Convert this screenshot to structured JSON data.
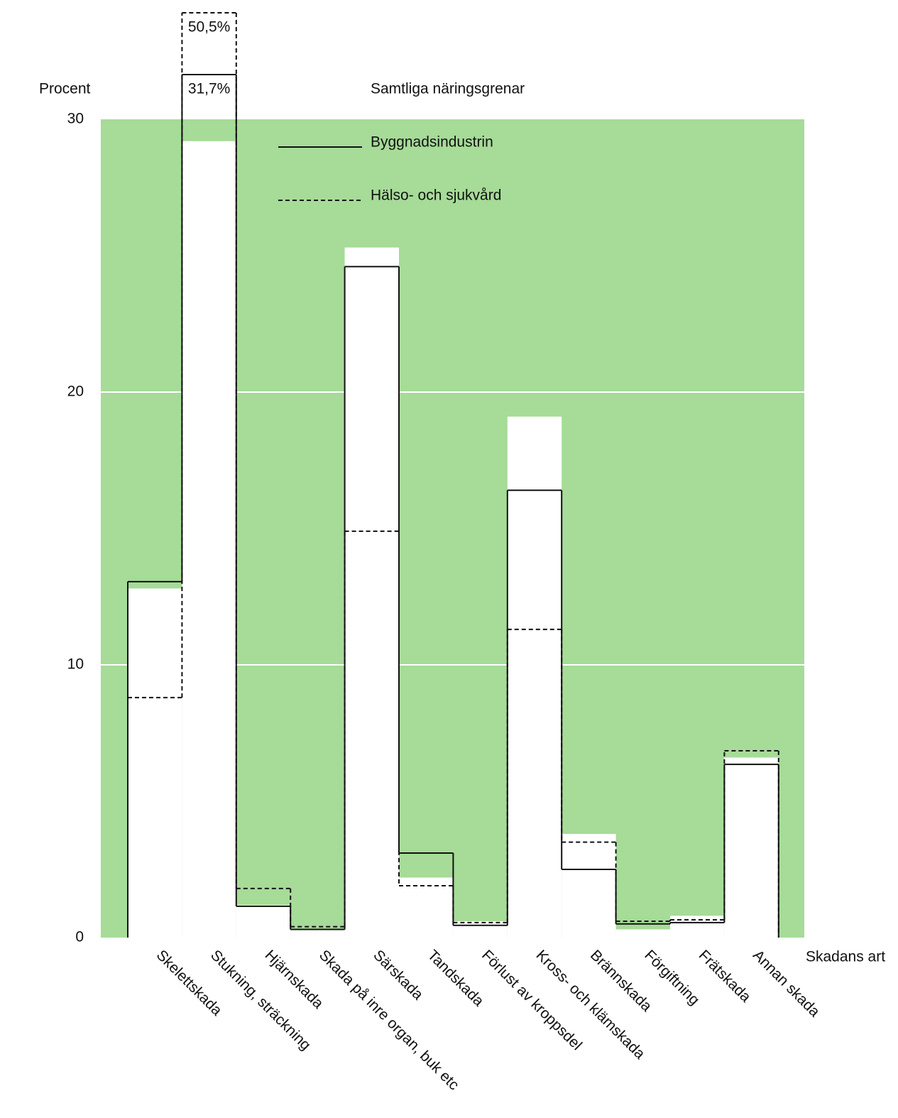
{
  "chart_data": {
    "type": "step",
    "y_label": "Procent",
    "x_label": "Skadans art",
    "categories": [
      "Skelettskada",
      "Stukning, sträckning",
      "Hjärnskada",
      "Skada på inre organ, buk etc",
      "Särskada",
      "Tandskada",
      "Förlust av kroppsdel",
      "Kross- och klämskada",
      "Brännskada",
      "Förgiftning",
      "Frätskada",
      "Annan skada"
    ],
    "series": [
      {
        "name": "Samtliga näringsgrenar",
        "color": "#ffffff",
        "style": "fill",
        "values": [
          12.8,
          29.2,
          1.2,
          0.3,
          25.3,
          2.2,
          0.6,
          19.1,
          3.8,
          0.3,
          0.8,
          6.6
        ]
      },
      {
        "name": "Byggnadsindustrin",
        "color": "#111111",
        "style": "solid",
        "values": [
          13.05,
          31.7,
          1.15,
          0.3,
          24.6,
          3.1,
          0.45,
          16.4,
          2.5,
          0.5,
          0.55,
          6.35
        ],
        "value_labels": [
          null,
          "31,7%",
          null,
          null,
          null,
          null,
          null,
          null,
          null,
          null,
          null,
          null
        ]
      },
      {
        "name": "Hälso- och sjukvård",
        "color": "#111111",
        "style": "dashed",
        "values": [
          8.8,
          50.5,
          1.8,
          0.4,
          14.9,
          1.9,
          0.55,
          11.3,
          3.5,
          0.6,
          0.65,
          6.85
        ],
        "value_labels": [
          null,
          "50,5%",
          null,
          null,
          null,
          null,
          null,
          null,
          null,
          null,
          null,
          null
        ]
      }
    ],
    "ylim": [
      0,
      30
    ],
    "yticks": [
      0,
      10,
      20,
      30
    ],
    "grid": true,
    "background": "#a6db98"
  }
}
